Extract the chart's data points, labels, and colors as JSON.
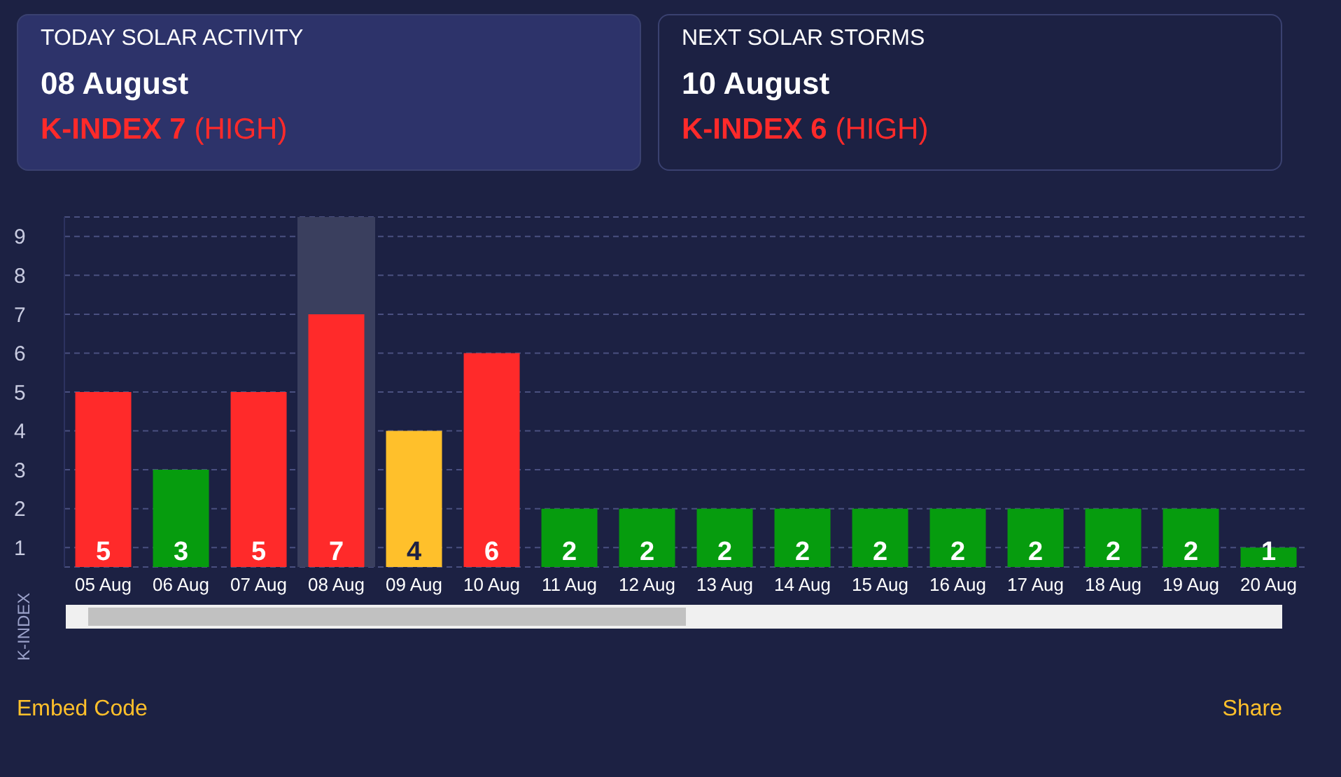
{
  "chart_data": {
    "type": "bar",
    "ylabel": "K-INDEX",
    "categories": [
      "05 Aug",
      "06 Aug",
      "07 Aug",
      "08 Aug",
      "09 Aug",
      "10 Aug",
      "11 Aug",
      "12 Aug",
      "13 Aug",
      "14 Aug",
      "15 Aug",
      "16 Aug",
      "17 Aug",
      "18 Aug",
      "19 Aug",
      "20 Aug"
    ],
    "values": [
      5,
      3,
      5,
      7,
      4,
      6,
      2,
      2,
      2,
      2,
      2,
      2,
      2,
      2,
      2,
      1
    ],
    "colors": [
      "#ff2a2a",
      "#069c0e",
      "#ff2a2a",
      "#ff2a2a",
      "#ffc02b",
      "#ff2a2a",
      "#069c0e",
      "#069c0e",
      "#069c0e",
      "#069c0e",
      "#069c0e",
      "#069c0e",
      "#069c0e",
      "#069c0e",
      "#069c0e",
      "#069c0e"
    ],
    "ylim": [
      0.5,
      9.5
    ],
    "yticks": [
      1,
      2,
      3,
      4,
      5,
      6,
      7,
      8,
      9
    ],
    "grid": "y",
    "data_labels": true,
    "bands": [
      {
        "axis": "x",
        "from": "08 Aug",
        "to": "08 Aug",
        "color": "#3a3f5e"
      }
    ],
    "annotations": [
      "TODAY SOLAR ACTIVITY",
      "08 August",
      "K-INDEX 7",
      "(HIGH)",
      "NEXT SOLAR STORMS",
      "10 August",
      "K-INDEX 6",
      "(HIGH)",
      "Embed Code",
      "Share"
    ]
  }
}
